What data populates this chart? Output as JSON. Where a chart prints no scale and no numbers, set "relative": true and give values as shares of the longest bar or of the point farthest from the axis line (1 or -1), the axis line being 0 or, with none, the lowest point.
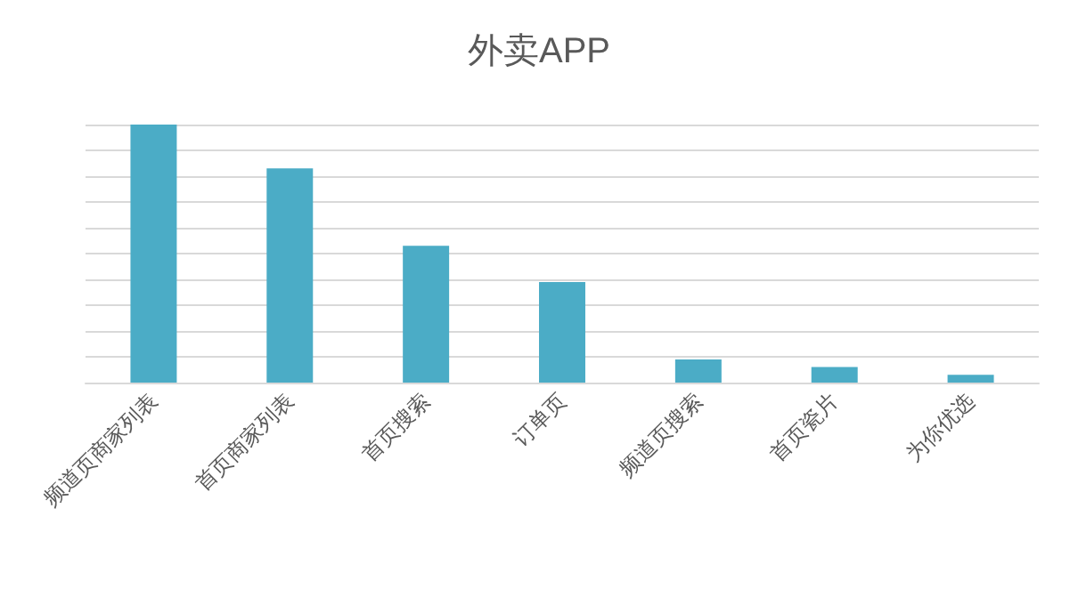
{
  "chart_data": {
    "type": "bar",
    "title": "外卖APP",
    "relative": true,
    "grid": "y",
    "color": "#4bacc6",
    "categories": [
      "频道页商家列表",
      "首页商家列表",
      "首页搜索",
      "订单页",
      "频道页搜索",
      "首页瓷片",
      "为你优选"
    ],
    "values": [
      1,
      0.83,
      0.53,
      0.39,
      0.09,
      0.06,
      0.03
    ]
  }
}
